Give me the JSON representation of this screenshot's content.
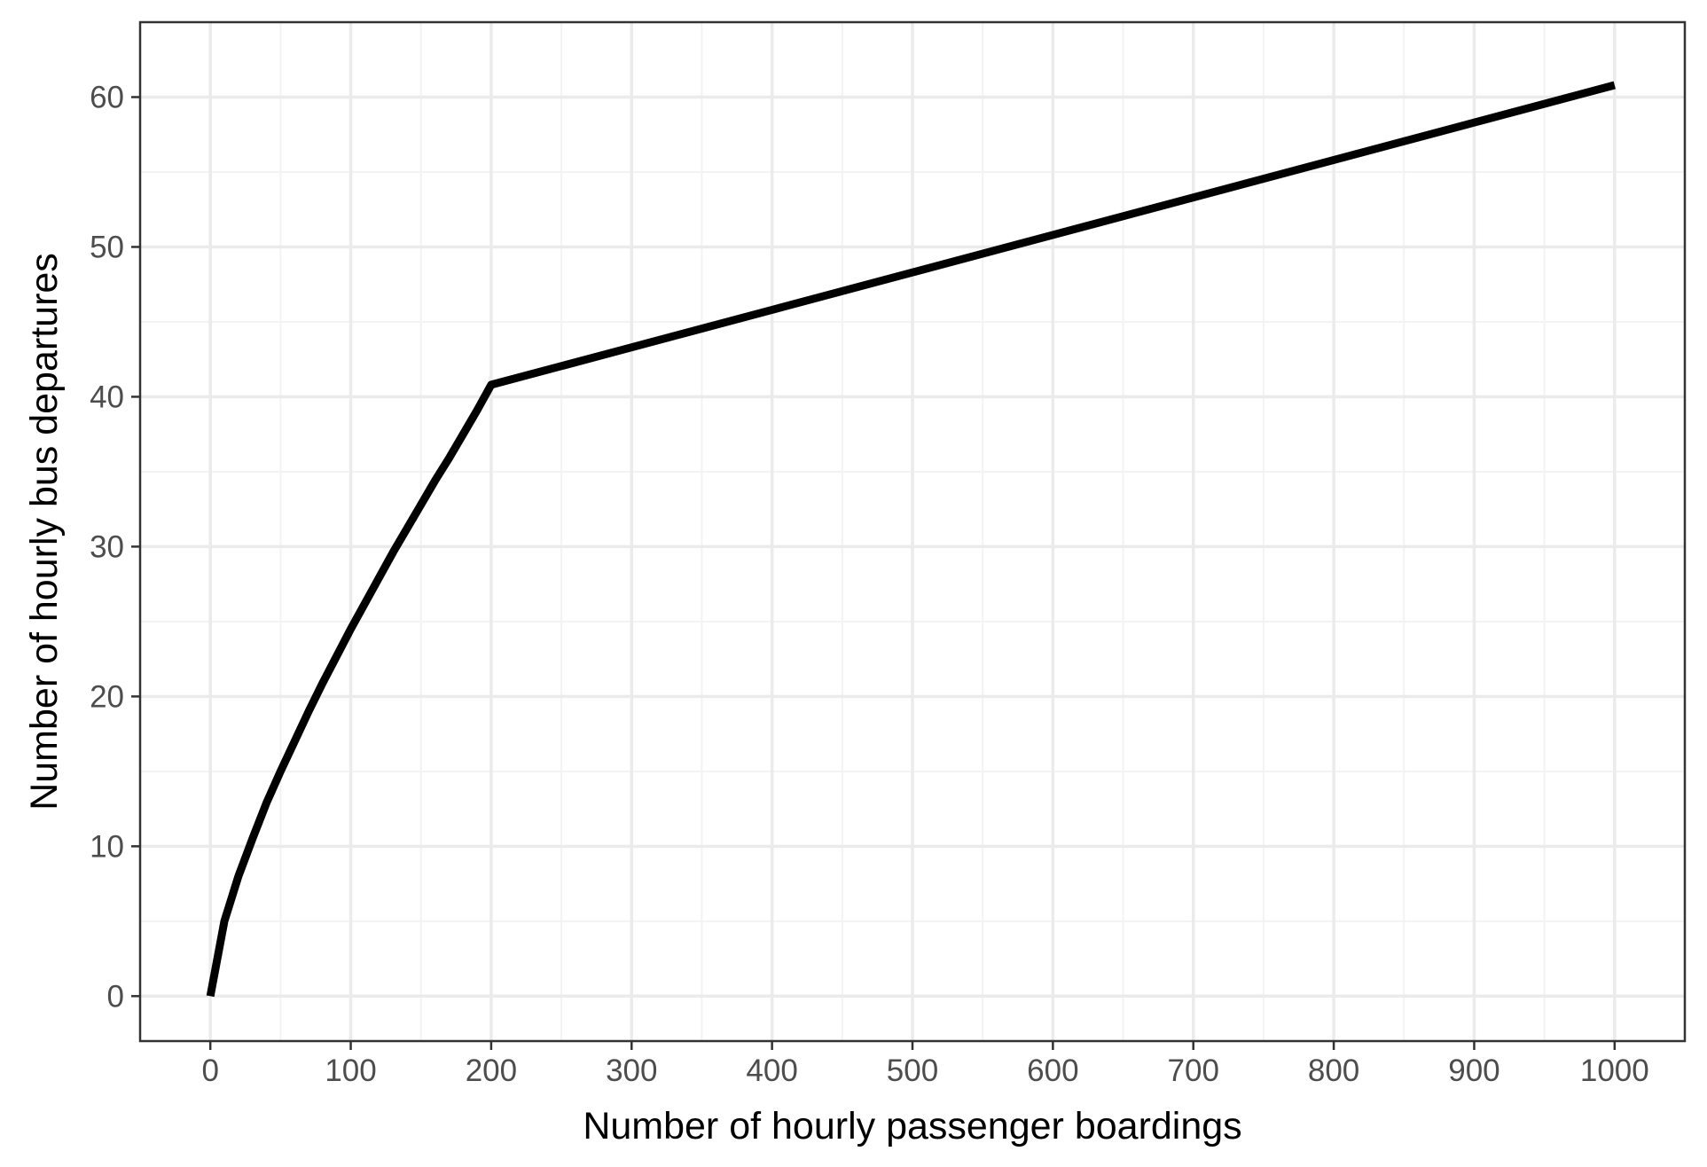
{
  "chart_data": {
    "type": "line",
    "title": "",
    "xlabel": "Number of hourly passenger boardings",
    "ylabel": "Number of hourly bus departures",
    "xlim": [
      -50,
      1050
    ],
    "ylim": [
      -3,
      65
    ],
    "xticks": [
      0,
      100,
      200,
      300,
      400,
      500,
      600,
      700,
      800,
      900,
      1000
    ],
    "yticks": [
      0,
      10,
      20,
      30,
      40,
      50,
      60
    ],
    "grid": true,
    "legend": "none",
    "series": [
      {
        "color": "#000000",
        "x": [
          0,
          10,
          20,
          30,
          40,
          50,
          60,
          70,
          80,
          90,
          100,
          110,
          120,
          130,
          140,
          150,
          160,
          170,
          180,
          190,
          200,
          300,
          400,
          500,
          600,
          700,
          800,
          900,
          1000
        ],
        "y": [
          0,
          5.0,
          8.0,
          10.5,
          12.9,
          15.0,
          17.0,
          19.0,
          20.9,
          22.7,
          24.5,
          26.2,
          27.9,
          29.6,
          31.2,
          32.8,
          34.4,
          35.9,
          37.5,
          39.1,
          40.8,
          43.3,
          45.8,
          48.3,
          50.8,
          53.3,
          55.8,
          58.3,
          60.8
        ]
      }
    ]
  }
}
